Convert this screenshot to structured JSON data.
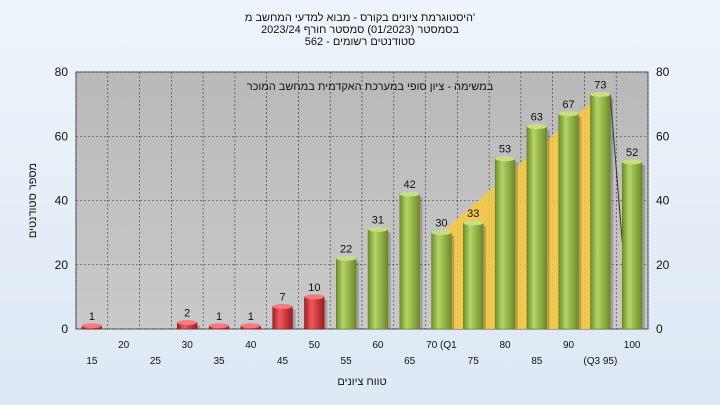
{
  "titles": {
    "line1": "היסטוגרמת ציונים בקורס - מבוא למדעי המחשב מ'",
    "line2": "בסמסטר  (01/2023)  סמסטר חורף  2023/24",
    "line3": "562 - סטודנטים רשומים"
  },
  "colors": {
    "background": "#dde8f4",
    "plot_background": "#c0c0c0",
    "failing_bar": "#e0353c",
    "passing_bar": "#8fb33e",
    "area_fill": "#f5c842",
    "trend_line": "#333333"
  },
  "chart_data": {
    "type": "bar",
    "annotation": "במשימה - ציון סופי במערכת האקדמית במחשב המוכר",
    "xlabel": "טווח ציונים",
    "ylabel": "מספר סטודנטים",
    "ylim": [
      0,
      80
    ],
    "yticks": [
      0,
      20,
      40,
      60,
      80
    ],
    "grid": true,
    "categories": [
      "15",
      "20",
      "25",
      "30",
      "35",
      "40",
      "45",
      "50",
      "55",
      "60",
      "65",
      "70 (Q1",
      "75",
      "80",
      "85",
      "90",
      "(Q3 95)",
      "100"
    ],
    "values": [
      1,
      0,
      0,
      2,
      1,
      1,
      7,
      10,
      22,
      31,
      42,
      30,
      33,
      53,
      63,
      67,
      73,
      52
    ],
    "value_labels": [
      "1",
      "",
      "",
      "2",
      "1",
      "1",
      "7",
      "10",
      "22",
      "31",
      "42",
      "30",
      "33",
      "53",
      "63",
      "67",
      "73",
      "52"
    ],
    "fail_threshold_category": "55",
    "area_overlay": {
      "x_start": "70 (Q1",
      "x_end": "(Q3 95)",
      "values_start": 30,
      "values_end": 73
    }
  }
}
